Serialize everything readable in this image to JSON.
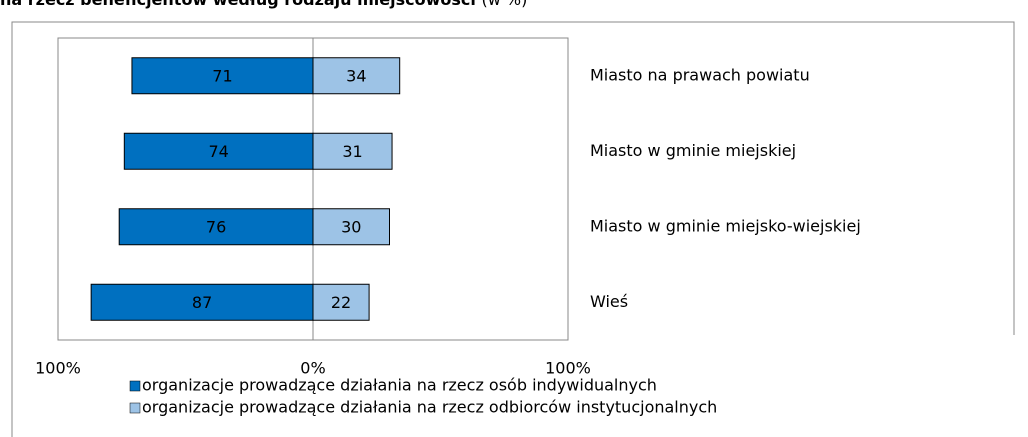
{
  "chart_data": {
    "type": "diverging-bar",
    "title": "na rzecz beneficjentów według rodzaju miejscowości",
    "subtitle": "(w %)",
    "categories": [
      "Miasto na prawach powiatu",
      "Miasto w gminie miejskiej",
      "Miasto w gminie miejsko-wiejskiej",
      "Wieś"
    ],
    "series": [
      {
        "name": "organizacje prowadzące działania na rzecz osób indywidualnych",
        "color": "#0070c0",
        "values": [
          -71,
          -74,
          -76,
          -87
        ],
        "value_labels": [
          "71",
          "74",
          "76",
          "87"
        ]
      },
      {
        "name": "organizacje prowadzące działania na rzecz odbiorców instytucjonalnych",
        "color": "#9dc3e6",
        "values": [
          34,
          31,
          30,
          22
        ]
      }
    ],
    "xlim": [
      -100,
      100
    ],
    "xticks": [
      {
        "value": -100,
        "label": "100%"
      },
      {
        "value": 0,
        "label": "0%"
      },
      {
        "value": 100,
        "label": "100%"
      }
    ],
    "legend": "bottom"
  }
}
